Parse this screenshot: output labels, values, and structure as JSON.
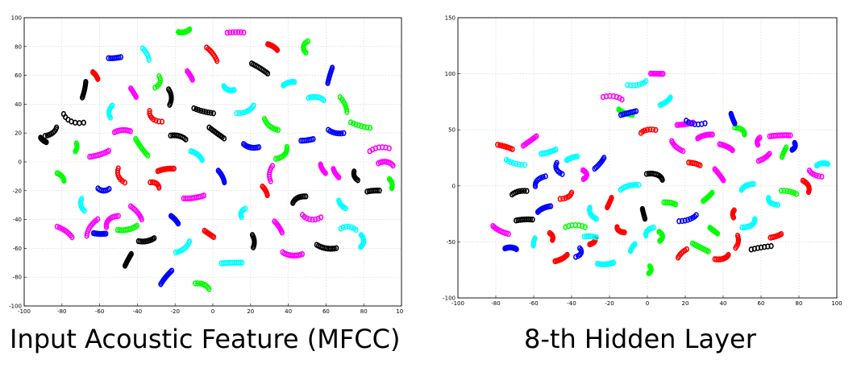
{
  "colors": {
    "palette": [
      "#ff00ff",
      "#00ff00",
      "#0000ff",
      "#ff0000",
      "#000000",
      "#00ffff"
    ],
    "grid": "#cfcfcf",
    "frame": "#000000"
  },
  "chart_data": [
    {
      "type": "scatter",
      "title": "",
      "caption": "Input Acoustic Feature (MFCC)",
      "xlim": [
        -100,
        100
      ],
      "ylim": [
        -100,
        100
      ],
      "xticks": [
        -100,
        -80,
        -60,
        -40,
        -20,
        0,
        20,
        40,
        60,
        80,
        100
      ],
      "yticks": [
        -100,
        -80,
        -60,
        -40,
        -20,
        0,
        20,
        40,
        60,
        80,
        100
      ],
      "grid": true,
      "marker": "open circle",
      "clusters": [
        [
          -90,
          15,
          4
        ],
        [
          -85,
          20,
          -8
        ],
        [
          -80,
          -10,
          6
        ],
        [
          -78,
          -48,
          10
        ],
        [
          -75,
          28,
          -12
        ],
        [
          -72,
          10,
          5
        ],
        [
          -70,
          -30,
          8
        ],
        [
          -68,
          50,
          -10
        ],
        [
          -65,
          -45,
          12
        ],
        [
          -62,
          60,
          -5
        ],
        [
          -60,
          5,
          10
        ],
        [
          -58,
          -20,
          -6
        ],
        [
          -55,
          35,
          8
        ],
        [
          -55,
          -40,
          -10
        ],
        [
          -52,
          72,
          6
        ],
        [
          -50,
          -10,
          10
        ],
        [
          -48,
          22,
          -8
        ],
        [
          -45,
          -68,
          8
        ],
        [
          -42,
          48,
          -6
        ],
        [
          -40,
          -35,
          10
        ],
        [
          -38,
          10,
          -12
        ],
        [
          -35,
          75,
          8
        ],
        [
          -35,
          -55,
          -8
        ],
        [
          -32,
          30,
          10
        ],
        [
          -30,
          -15,
          -6
        ],
        [
          -28,
          55,
          8
        ],
        [
          -25,
          -80,
          10
        ],
        [
          -22,
          45,
          -10
        ],
        [
          -20,
          -40,
          6
        ],
        [
          -18,
          18,
          -8
        ],
        [
          -15,
          -60,
          10
        ],
        [
          -15,
          90,
          6
        ],
        [
          -12,
          60,
          -6
        ],
        [
          -10,
          -25,
          10
        ],
        [
          -8,
          5,
          -8
        ],
        [
          -5,
          35,
          10
        ],
        [
          -5,
          -85,
          -8
        ],
        [
          -2,
          -50,
          6
        ],
        [
          0,
          75,
          10
        ],
        [
          2,
          20,
          -10
        ],
        [
          5,
          -10,
          8
        ],
        [
          8,
          50,
          -6
        ],
        [
          10,
          -70,
          10
        ],
        [
          12,
          90,
          -8
        ],
        [
          15,
          -35,
          6
        ],
        [
          18,
          35,
          10
        ],
        [
          20,
          10,
          -8
        ],
        [
          22,
          -55,
          8
        ],
        [
          25,
          65,
          -10
        ],
        [
          28,
          -20,
          6
        ],
        [
          30,
          25,
          10
        ],
        [
          32,
          80,
          -6
        ],
        [
          35,
          -45,
          8
        ],
        [
          38,
          5,
          -10
        ],
        [
          40,
          55,
          6
        ],
        [
          42,
          -65,
          10
        ],
        [
          45,
          -25,
          -8
        ],
        [
          48,
          80,
          8
        ],
        [
          50,
          15,
          -6
        ],
        [
          52,
          -40,
          10
        ],
        [
          55,
          45,
          -8
        ],
        [
          58,
          -5,
          6
        ],
        [
          60,
          -60,
          10
        ],
        [
          62,
          60,
          -10
        ],
        [
          65,
          20,
          8
        ],
        [
          68,
          -30,
          -6
        ],
        [
          70,
          40,
          10
        ],
        [
          72,
          -45,
          -8
        ],
        [
          75,
          -10,
          6
        ],
        [
          78,
          25,
          10
        ],
        [
          80,
          -55,
          -8
        ],
        [
          85,
          -20,
          6
        ],
        [
          88,
          10,
          -10
        ],
        [
          92,
          0,
          8
        ],
        [
          95,
          -15,
          -6
        ],
        [
          -45,
          -47,
          10
        ],
        [
          -60,
          -50,
          -6
        ],
        [
          -25,
          -5,
          8
        ],
        [
          30,
          -8,
          -10
        ],
        [
          65,
          -8,
          6
        ]
      ]
    },
    {
      "type": "scatter",
      "title": "",
      "caption": "8-th Hidden Layer",
      "xlim": [
        -100,
        100
      ],
      "ylim": [
        -100,
        150
      ],
      "xticks": [
        -100,
        -80,
        -60,
        -40,
        -20,
        0,
        20,
        40,
        60,
        80,
        100
      ],
      "yticks": [
        -100,
        -50,
        0,
        50,
        100,
        150
      ],
      "grid": true,
      "marker": "open circle",
      "clusters": [
        [
          -78,
          -40,
          10
        ],
        [
          -75,
          35,
          -8
        ],
        [
          -72,
          -55,
          6
        ],
        [
          -70,
          20,
          10
        ],
        [
          -68,
          -5,
          -8
        ],
        [
          -65,
          -30,
          8
        ],
        [
          -62,
          40,
          -10
        ],
        [
          -60,
          -50,
          6
        ],
        [
          -58,
          5,
          10
        ],
        [
          -55,
          -20,
          -8
        ],
        [
          -52,
          30,
          8
        ],
        [
          -50,
          -45,
          -6
        ],
        [
          -48,
          15,
          10
        ],
        [
          -45,
          -65,
          8
        ],
        [
          -42,
          -10,
          -8
        ],
        [
          -40,
          25,
          6
        ],
        [
          -38,
          -35,
          10
        ],
        [
          -35,
          -60,
          -8
        ],
        [
          -32,
          10,
          8
        ],
        [
          -30,
          -25,
          -10
        ],
        [
          -28,
          -50,
          6
        ],
        [
          -25,
          20,
          10
        ],
        [
          -22,
          -70,
          -8
        ],
        [
          -20,
          -15,
          8
        ],
        [
          -18,
          80,
          10
        ],
        [
          -15,
          -40,
          -6
        ],
        [
          -12,
          65,
          8
        ],
        [
          -10,
          0,
          -10
        ],
        [
          -8,
          -55,
          6
        ],
        [
          -5,
          90,
          10
        ],
        [
          -2,
          -25,
          -8
        ],
        [
          0,
          50,
          8
        ],
        [
          2,
          -75,
          -6
        ],
        [
          5,
          10,
          10
        ],
        [
          8,
          -45,
          8
        ],
        [
          10,
          75,
          -8
        ],
        [
          12,
          -15,
          6
        ],
        [
          15,
          35,
          10
        ],
        [
          18,
          -60,
          -8
        ],
        [
          20,
          55,
          8
        ],
        [
          22,
          -30,
          -10
        ],
        [
          25,
          20,
          6
        ],
        [
          28,
          -55,
          10
        ],
        [
          30,
          45,
          -8
        ],
        [
          32,
          -10,
          8
        ],
        [
          35,
          -40,
          -6
        ],
        [
          38,
          10,
          10
        ],
        [
          40,
          -65,
          8
        ],
        [
          42,
          35,
          -8
        ],
        [
          45,
          -25,
          6
        ],
        [
          48,
          -50,
          10
        ],
        [
          50,
          50,
          -8
        ],
        [
          52,
          0,
          8
        ],
        [
          55,
          -35,
          -10
        ],
        [
          58,
          40,
          6
        ],
        [
          60,
          -55,
          10
        ],
        [
          62,
          25,
          -8
        ],
        [
          65,
          -15,
          8
        ],
        [
          68,
          -45,
          -6
        ],
        [
          70,
          45,
          10
        ],
        [
          72,
          30,
          8
        ],
        [
          75,
          -5,
          -8
        ],
        [
          78,
          35,
          6
        ],
        [
          85,
          0,
          10
        ],
        [
          88,
          10,
          -8
        ],
        [
          92,
          20,
          6
        ],
        [
          -10,
          65,
          8
        ],
        [
          5,
          100,
          -6
        ],
        [
          25,
          55,
          10
        ],
        [
          45,
          60,
          -8
        ],
        [
          -30,
          -45,
          6
        ],
        [
          0,
          -40,
          8
        ]
      ]
    }
  ]
}
